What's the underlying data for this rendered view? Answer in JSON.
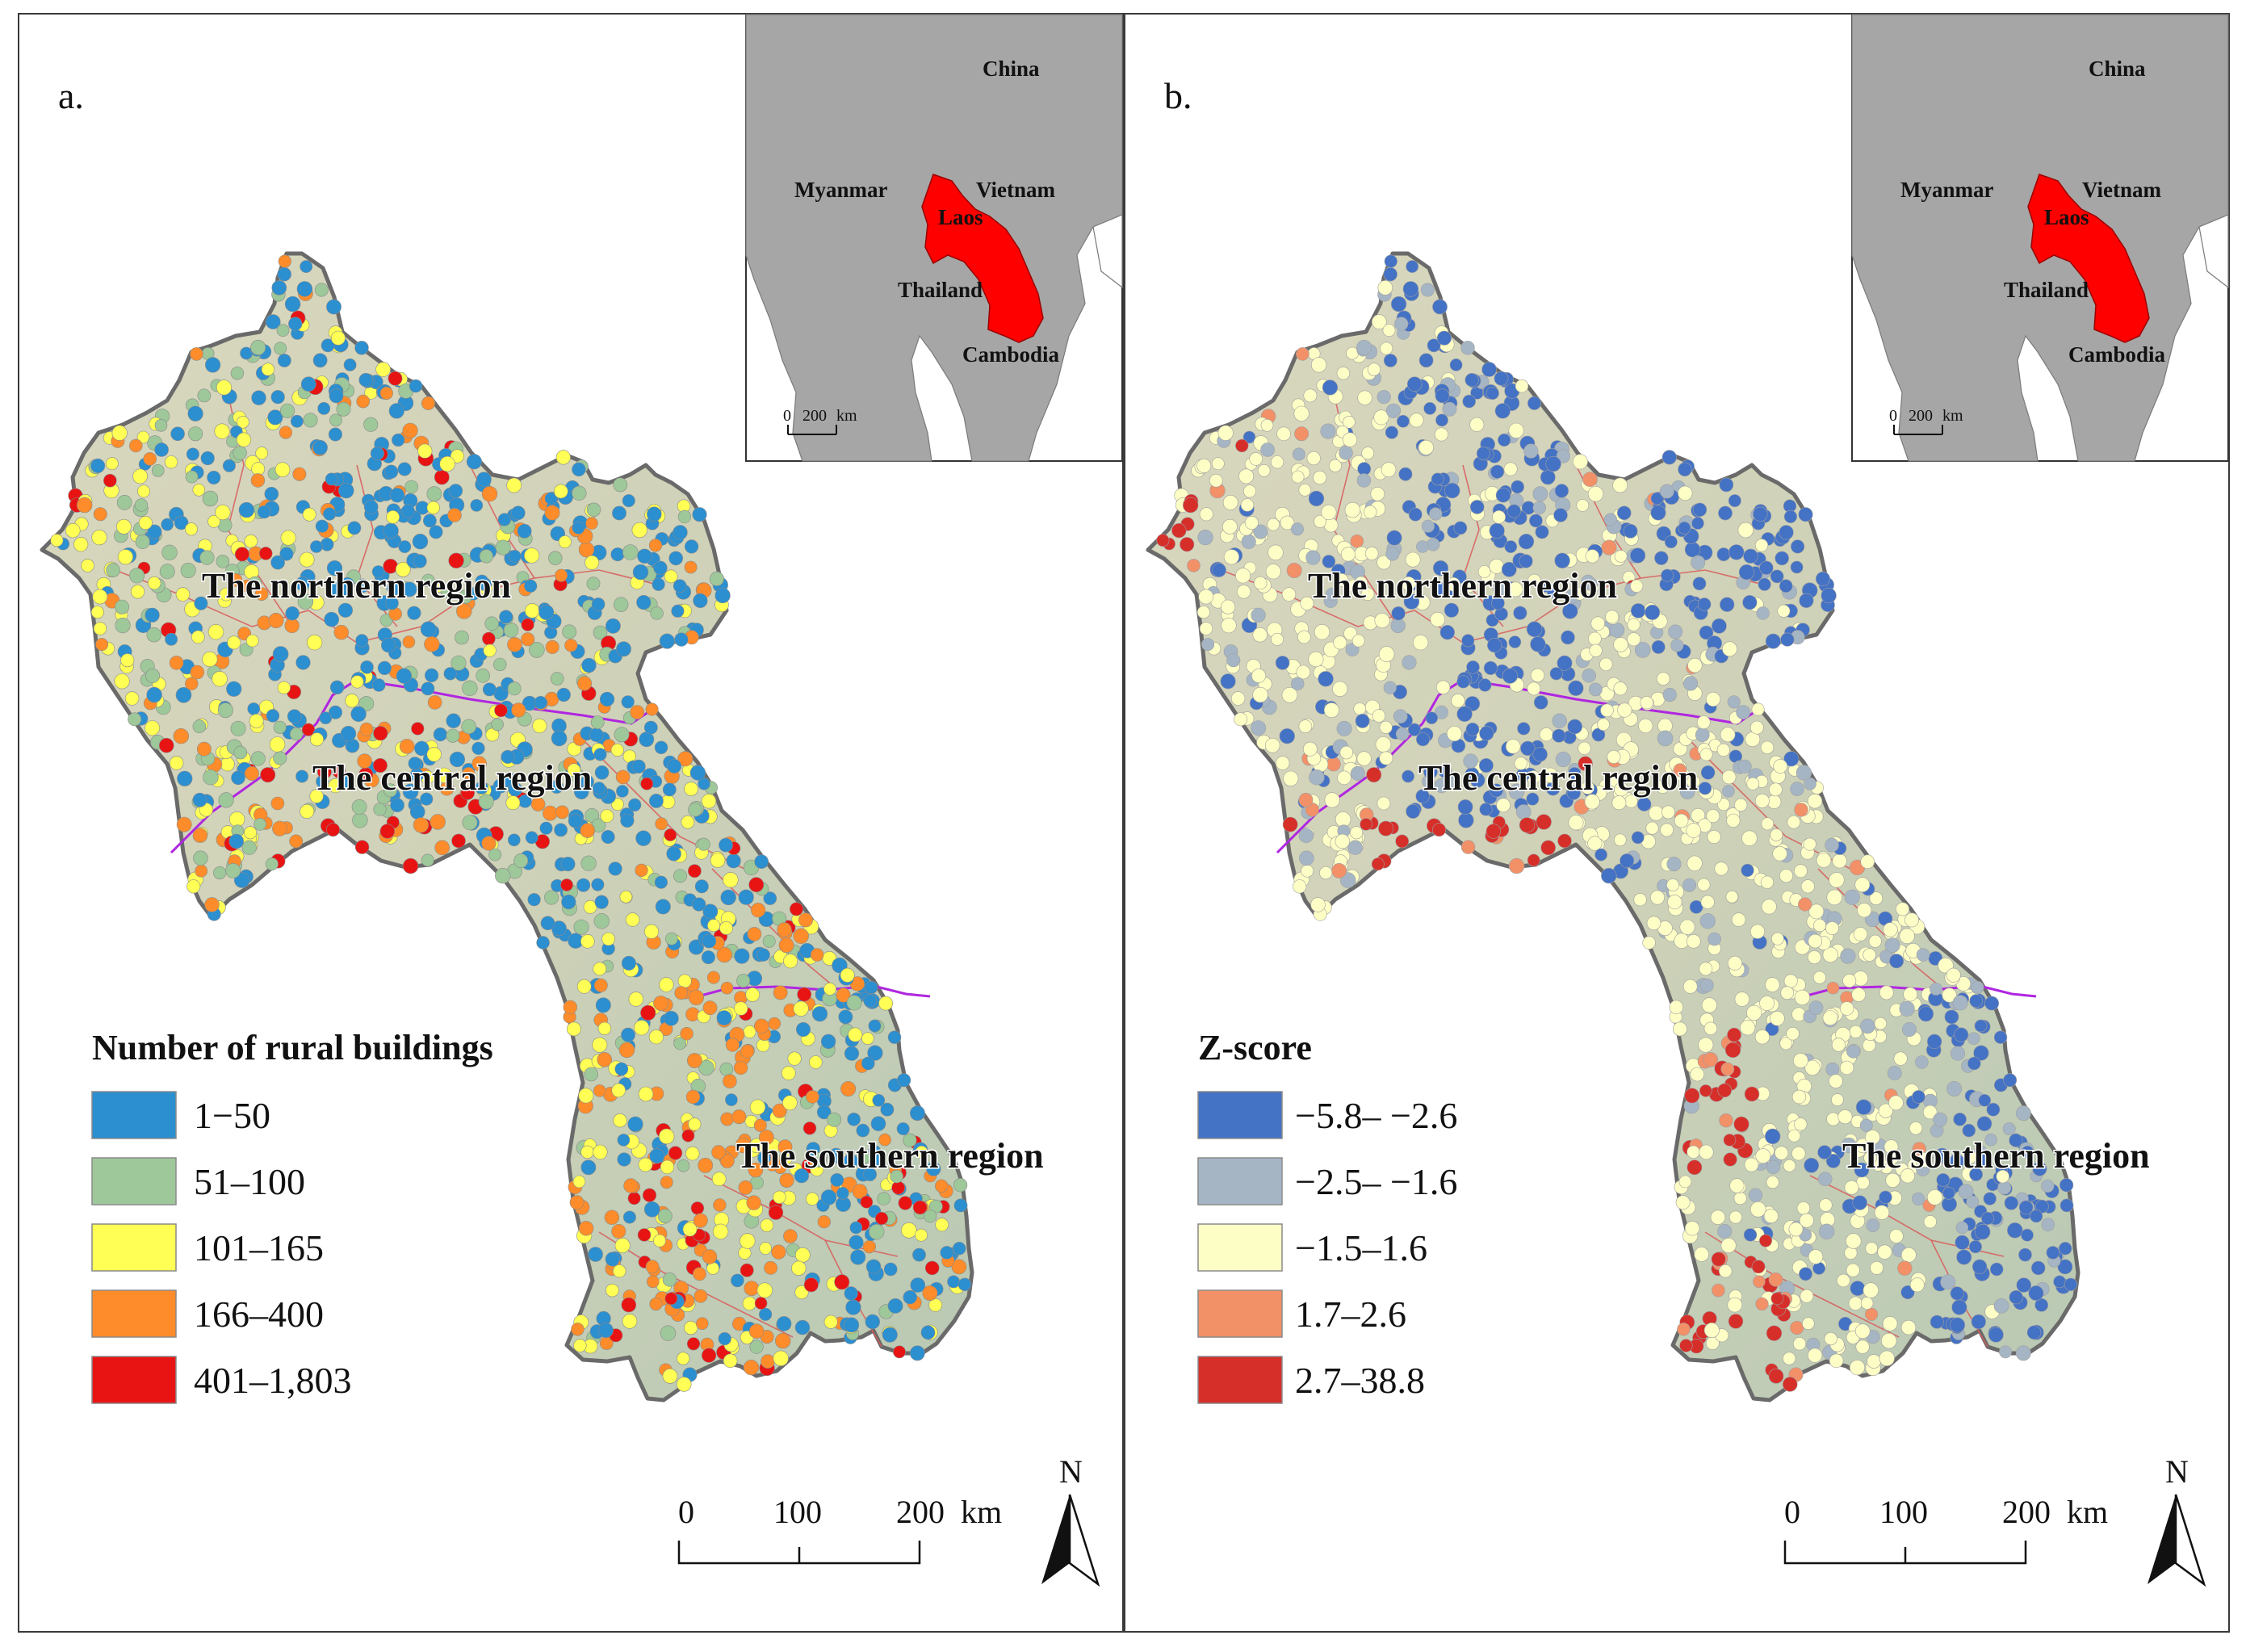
{
  "panels": [
    {
      "id": "a",
      "letter": "a.",
      "legend": {
        "title": "Number of rural buildings",
        "items": [
          {
            "label": "1−50",
            "color": "#2b8fd0"
          },
          {
            "label": "51–100",
            "color": "#9ec79a"
          },
          {
            "label": "101–165",
            "color": "#ffff55"
          },
          {
            "label": "166–400",
            "color": "#ff8c2a"
          },
          {
            "label": "401–1,803",
            "color": "#e81414"
          }
        ]
      }
    },
    {
      "id": "b",
      "letter": "b.",
      "legend": {
        "title": "Z-score",
        "items": [
          {
            "label": "−5.8– −2.6",
            "color": "#4472c4"
          },
          {
            "label": "−2.5– −1.6",
            "color": "#a5b5c4"
          },
          {
            "label": "−1.5–1.6",
            "color": "#fdfdc6"
          },
          {
            "label": "1.7–2.6",
            "color": "#f29068"
          },
          {
            "label": "2.7–38.8",
            "color": "#d62f2a"
          }
        ]
      }
    }
  ],
  "regions": {
    "north": "The northern region",
    "central": "The central region",
    "south": "The southern region"
  },
  "scale_bar": {
    "ticks": [
      "0",
      "100",
      "200"
    ],
    "unit": "km"
  },
  "north_arrow": "N",
  "inset": {
    "countries": {
      "china": "China",
      "myanmar": "Myanmar",
      "vietnam": "Vietnam",
      "laos": "Laos",
      "thailand": "Thailand",
      "cambodia": "Cambodia"
    },
    "scale": {
      "zero": "0",
      "value": "200",
      "unit": "km"
    },
    "highlight_color": "#ff0000"
  }
}
